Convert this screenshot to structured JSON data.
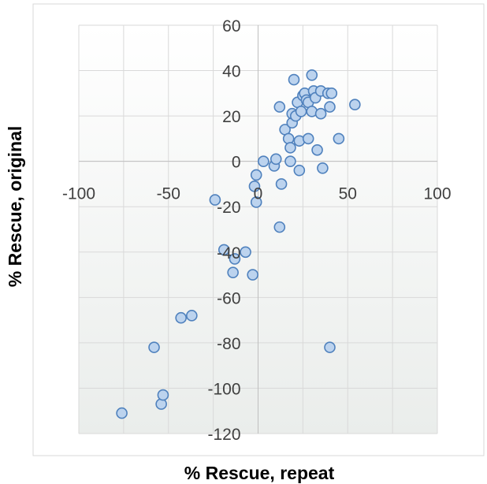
{
  "chart_data": {
    "type": "scatter",
    "title": "",
    "xlabel": "% Rescue, repeat",
    "ylabel": "% Rescue, original",
    "xlim": [
      -100,
      100
    ],
    "ylim": [
      -120,
      60
    ],
    "xticks": [
      "-100",
      "-50",
      "0",
      "50",
      "100"
    ],
    "yticks": [
      "60",
      "40",
      "20",
      "0",
      "-20",
      "-40",
      "-60",
      "-80",
      "-100",
      "-120"
    ],
    "grid": true,
    "legend": "none",
    "colors": {
      "marker_fill": "#bcd3ee",
      "marker_edge": "#4f81bd",
      "grid": "#d9d9d9",
      "axis": "#bfbfbf"
    },
    "points": [
      {
        "x": -76,
        "y": -111
      },
      {
        "x": -54,
        "y": -107
      },
      {
        "x": -53,
        "y": -103
      },
      {
        "x": -58,
        "y": -82
      },
      {
        "x": -43,
        "y": -69
      },
      {
        "x": -37,
        "y": -68
      },
      {
        "x": -24,
        "y": -17
      },
      {
        "x": -19,
        "y": -39
      },
      {
        "x": -13,
        "y": -43
      },
      {
        "x": -14,
        "y": -49
      },
      {
        "x": -7,
        "y": -40
      },
      {
        "x": -3,
        "y": -50
      },
      {
        "x": -2,
        "y": -11
      },
      {
        "x": -1,
        "y": -18
      },
      {
        "x": -1,
        "y": -6
      },
      {
        "x": 3,
        "y": 0
      },
      {
        "x": 9,
        "y": -2
      },
      {
        "x": 10,
        "y": 1
      },
      {
        "x": 12,
        "y": -29
      },
      {
        "x": 13,
        "y": -10
      },
      {
        "x": 12,
        "y": 24
      },
      {
        "x": 15,
        "y": 14
      },
      {
        "x": 17,
        "y": 10
      },
      {
        "x": 18,
        "y": 6
      },
      {
        "x": 18,
        "y": 0
      },
      {
        "x": 19,
        "y": 17
      },
      {
        "x": 19,
        "y": 21
      },
      {
        "x": 20,
        "y": 36
      },
      {
        "x": 21,
        "y": 20
      },
      {
        "x": 22,
        "y": 26
      },
      {
        "x": 23,
        "y": 9
      },
      {
        "x": 23,
        "y": -4
      },
      {
        "x": 24,
        "y": 22
      },
      {
        "x": 25,
        "y": 29
      },
      {
        "x": 26,
        "y": 30
      },
      {
        "x": 27,
        "y": 27
      },
      {
        "x": 28,
        "y": 10
      },
      {
        "x": 28,
        "y": 26
      },
      {
        "x": 30,
        "y": 22
      },
      {
        "x": 30,
        "y": 38
      },
      {
        "x": 31,
        "y": 31
      },
      {
        "x": 32,
        "y": 28
      },
      {
        "x": 33,
        "y": 5
      },
      {
        "x": 35,
        "y": 31
      },
      {
        "x": 35,
        "y": 21
      },
      {
        "x": 36,
        "y": -3
      },
      {
        "x": 39,
        "y": 30
      },
      {
        "x": 40,
        "y": 24
      },
      {
        "x": 41,
        "y": 30
      },
      {
        "x": 40,
        "y": -82
      },
      {
        "x": 45,
        "y": 10
      },
      {
        "x": 54,
        "y": 25
      }
    ]
  }
}
